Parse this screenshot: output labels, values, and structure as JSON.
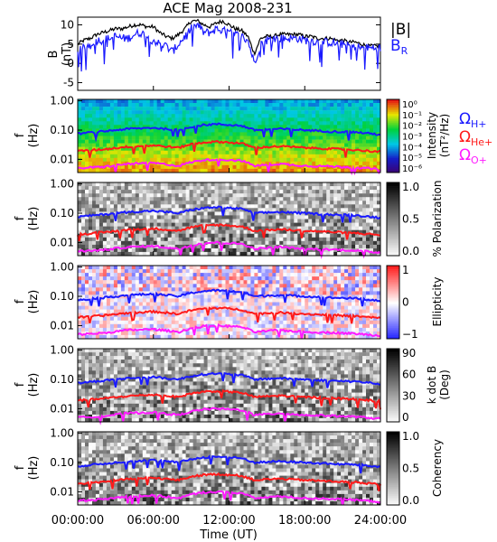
{
  "title": "ACE Mag 2008-231",
  "x_axis": {
    "label": "Time (UT)",
    "ticks": [
      "00:00:00",
      "06:00:00",
      "12:00:00",
      "18:00:00",
      "24:00:00"
    ],
    "range_hours": [
      0,
      24
    ]
  },
  "legend": {
    "B_total": {
      "label": "|B|",
      "color": "#000000"
    },
    "B_R": {
      "label": "B",
      "sub": "R",
      "color": "#1a1aff"
    },
    "omega_H": {
      "label": "Ω",
      "sub": "H+",
      "color": "#1a1aff"
    },
    "omega_He": {
      "label": "Ω",
      "sub": "He+",
      "color": "#ff1a1a"
    },
    "omega_O": {
      "label": "Ω",
      "sub": "O+",
      "color": "#ff1aff"
    }
  },
  "panels": {
    "b_panel": {
      "ylabel_line1": "B",
      "ylabel_line2": "(nT)",
      "ylim": [
        -7,
        12
      ],
      "yticks": [
        "10",
        "5",
        "0",
        "-5"
      ]
    },
    "spectral": [
      {
        "id": "intensity",
        "ylabel_line1": "f",
        "ylabel_line2": "(Hz)",
        "cbar_ticks": [
          "10⁰",
          "10⁻¹",
          "10⁻²",
          "10⁻³",
          "10⁻⁴",
          "10⁻⁵",
          "10⁻⁶"
        ],
        "cbar_label_line1": "Intensity",
        "cbar_label_line2": "(nT²/Hz)",
        "colormap": "rainbow"
      },
      {
        "id": "polarization",
        "ylabel_line1": "f",
        "ylabel_line2": "(Hz)",
        "cbar_ticks": [
          "1.0",
          "0.5",
          "0.0"
        ],
        "cbar_label_line1": "% Polarization",
        "cbar_label_line2": "",
        "colormap": "gray"
      },
      {
        "id": "ellipticity",
        "ylabel_line1": "f",
        "ylabel_line2": "(Hz)",
        "cbar_ticks": [
          "1",
          "0",
          "−1"
        ],
        "cbar_label_line1": "Ellipticity",
        "cbar_label_line2": "",
        "colormap": "bwr"
      },
      {
        "id": "kdotb",
        "ylabel_line1": "f",
        "ylabel_line2": "(Hz)",
        "cbar_ticks": [
          "90",
          "60",
          "30",
          "0"
        ],
        "cbar_label_line1": "k dot B",
        "cbar_label_line2": "(Deg)",
        "colormap": "gray"
      },
      {
        "id": "coherency",
        "ylabel_line1": "f",
        "ylabel_line2": "(Hz)",
        "cbar_ticks": [
          "1.0",
          "0.5",
          "0.0"
        ],
        "cbar_label_line1": "Coherency",
        "cbar_label_line2": "",
        "colormap": "gray"
      }
    ],
    "freq_ticks": [
      "1.00",
      "0.10",
      "0.01"
    ]
  },
  "chart_data": {
    "type": "line",
    "title": "ACE Mag 2008-231",
    "xlabel": "Time (UT)",
    "ylabel": "B (nT)",
    "xlim_hours": [
      0,
      24
    ],
    "ylim": [
      -7,
      12
    ],
    "series": [
      {
        "name": "|B|",
        "color": "#000000",
        "x": [
          0,
          0.5,
          1,
          1.5,
          2,
          2.5,
          3,
          3.5,
          4,
          4.5,
          5,
          5.5,
          6,
          6.5,
          7,
          7.5,
          8,
          8.5,
          9,
          9.5,
          10,
          10.5,
          11,
          11.5,
          12,
          12.5,
          13,
          13.5,
          14,
          14.5,
          15,
          15.5,
          16,
          16.5,
          17,
          17.5,
          18,
          18.5,
          19,
          19.5,
          20,
          20.5,
          21,
          21.5,
          22,
          22.5,
          23,
          23.5,
          24
        ],
        "y": [
          5,
          6,
          6.5,
          7.5,
          8,
          8.5,
          9,
          9,
          9.5,
          10,
          10,
          9.5,
          9.5,
          8,
          7,
          6.5,
          7.5,
          9,
          11,
          11,
          10,
          9.5,
          10.5,
          11,
          10,
          9,
          8.5,
          7,
          2.5,
          6.5,
          7,
          7,
          7.5,
          7.5,
          7.5,
          7.5,
          7,
          7,
          6.5,
          6.5,
          6.5,
          6,
          6,
          5.5,
          5.5,
          5,
          4.5,
          4.5,
          4.5
        ]
      },
      {
        "name": "B_R",
        "color": "#1a1aff",
        "x": [
          0,
          0.5,
          1,
          1.5,
          2,
          2.5,
          3,
          3.5,
          4,
          4.5,
          5,
          5.5,
          6,
          6.5,
          7,
          7.5,
          8,
          8.5,
          9,
          9.5,
          10,
          10.5,
          11,
          11.5,
          12,
          12.5,
          13,
          13.5,
          14,
          14.5,
          15,
          15.5,
          16,
          16.5,
          17,
          17.5,
          18,
          18.5,
          19,
          19.5,
          20,
          20.5,
          21,
          21.5,
          22,
          22.5,
          23,
          23.5,
          24
        ],
        "y": [
          3,
          4,
          5,
          6,
          6,
          6.5,
          7,
          6.5,
          6.5,
          7.5,
          8,
          7,
          6,
          5,
          4.5,
          3,
          5,
          7,
          9,
          10,
          8,
          8,
          9,
          8.5,
          8,
          7.5,
          7,
          6,
          0,
          5,
          6,
          6.5,
          6.5,
          6.5,
          6.5,
          6.5,
          6,
          6,
          5.5,
          5.5,
          5.5,
          5,
          5,
          4.5,
          4.5,
          4,
          4,
          4,
          4
        ]
      }
    ],
    "cyclotron_frequencies_hz": {
      "x_hours": [
        0,
        2,
        4,
        6,
        8,
        9,
        10,
        11,
        12,
        13,
        14,
        16,
        18,
        20,
        22,
        24
      ],
      "H+": [
        0.075,
        0.09,
        0.11,
        0.12,
        0.1,
        0.13,
        0.15,
        0.16,
        0.15,
        0.14,
        0.1,
        0.11,
        0.1,
        0.09,
        0.085,
        0.07
      ],
      "He+": [
        0.019,
        0.022,
        0.027,
        0.03,
        0.025,
        0.033,
        0.038,
        0.04,
        0.038,
        0.035,
        0.025,
        0.028,
        0.025,
        0.023,
        0.021,
        0.018
      ],
      "O+": [
        0.005,
        0.0055,
        0.007,
        0.0075,
        0.006,
        0.008,
        0.0095,
        0.01,
        0.0095,
        0.009,
        0.006,
        0.007,
        0.006,
        0.0058,
        0.0053,
        0.0045
      ]
    }
  }
}
